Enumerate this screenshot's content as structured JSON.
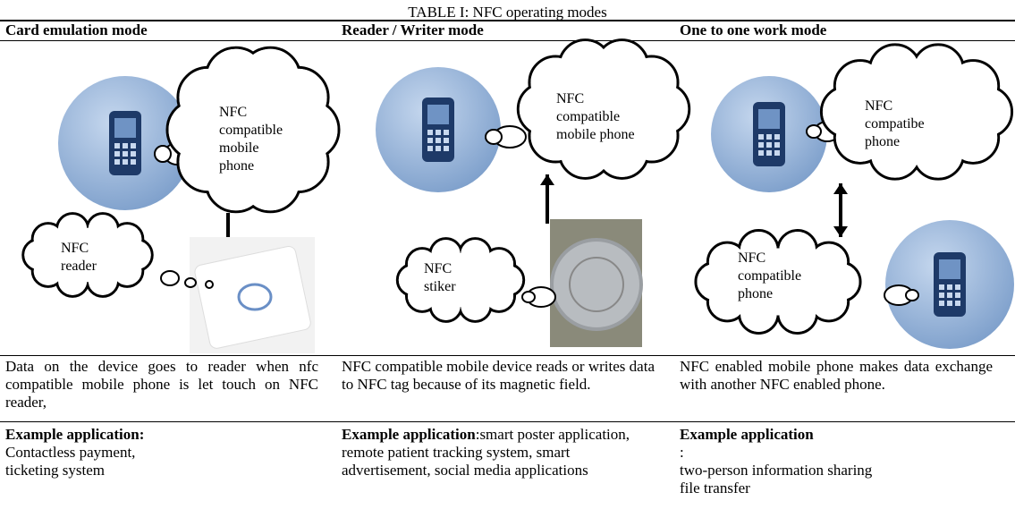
{
  "title": "TABLE I: NFC operating modes",
  "columns": [
    {
      "header": "Card emulation mode",
      "clouds": [
        [
          "NFC",
          "compatible",
          "mobile",
          "phone"
        ],
        [
          "NFC",
          "reader"
        ]
      ],
      "description": "Data on the device goes to reader when nfc compatible mobile phone is let touch on NFC reader,",
      "example": {
        "label": "Example application:",
        "lines": [
          "Contactless payment,",
          "ticketing system"
        ]
      }
    },
    {
      "header": "Reader / Writer mode",
      "clouds": [
        [
          "NFC",
          "compatible",
          "mobile phone"
        ],
        [
          "NFC",
          "stiker"
        ]
      ],
      "description": "NFC compatible mobile device reads or writes data to NFC tag because of its magnetic field.",
      "example": {
        "label": "Example application",
        "lines": [
          ":smart poster application, remote patient tracking system, smart advertisement, social media applications"
        ]
      }
    },
    {
      "header": "One to one work mode",
      "clouds": [
        [
          "NFC",
          "compatibe",
          "phone"
        ],
        [
          "NFC",
          "compatible",
          "phone"
        ]
      ],
      "description": "NFC enabled mobile phone makes data exchange with another NFC enabled phone.",
      "example": {
        "label": "Example application",
        "lines": [
          ":",
          "two-person information sharing",
          "file transfer"
        ]
      }
    }
  ]
}
